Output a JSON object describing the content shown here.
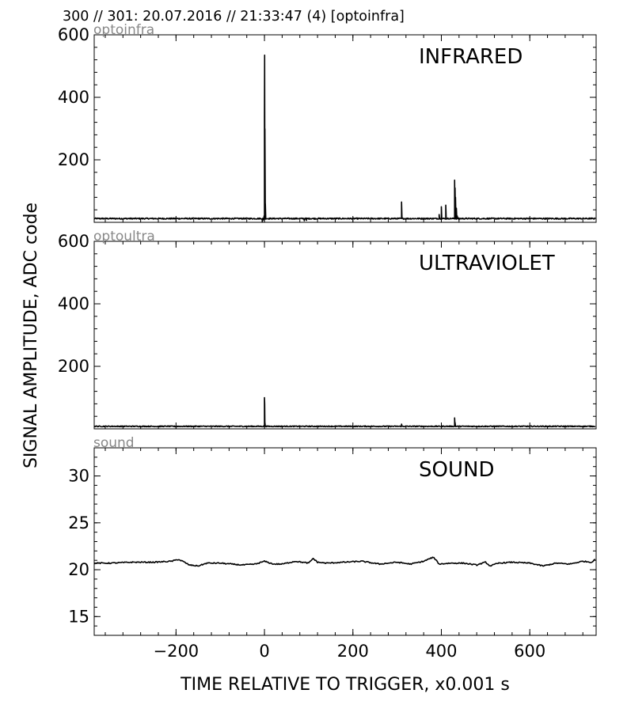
{
  "header": "300 // 301:   20.07.2016 // 21:33:47 (4)  [optoinfra]",
  "xlabel": "TIME RELATIVE TO TRIGGER,   x0.001 s",
  "ylabel": "SIGNAL AMPLITUDE,  ADC code",
  "chart_data": [
    {
      "type": "line",
      "title": "INFRARED",
      "source_label": "optoinfra",
      "xlim": [
        -385,
        750
      ],
      "ylim": [
        0,
        600
      ],
      "x_ticks": [
        -200,
        0,
        200,
        400,
        600
      ],
      "x_tick_labels": [
        "",
        "",
        "",
        "",
        ""
      ],
      "y_ticks": [
        200,
        400,
        600
      ],
      "y_tick_labels": [
        "200",
        "400",
        "600"
      ],
      "grid": false,
      "baseline": 12,
      "baseline_noise": 2,
      "peaks": [
        [
          -5,
          2
        ],
        [
          -2,
          8
        ],
        [
          -1,
          20
        ],
        [
          0,
          340
        ],
        [
          0.4,
          535
        ],
        [
          1,
          300
        ],
        [
          2,
          60
        ],
        [
          3,
          10
        ],
        [
          90,
          5
        ],
        [
          95,
          6
        ],
        [
          310,
          65
        ],
        [
          395,
          25
        ],
        [
          400,
          50
        ],
        [
          410,
          55
        ],
        [
          430,
          135
        ],
        [
          431,
          110
        ],
        [
          432,
          80
        ],
        [
          434,
          45
        ],
        [
          436,
          20
        ],
        [
          440,
          8
        ]
      ],
      "series": [
        {
          "name": "optoinfra",
          "color": "#000000"
        }
      ]
    },
    {
      "type": "line",
      "title": "ULTRAVIOLET",
      "source_label": "optoultra",
      "xlim": [
        -385,
        750
      ],
      "ylim": [
        0,
        600
      ],
      "x_ticks": [
        -200,
        0,
        200,
        400,
        600
      ],
      "x_tick_labels": [
        "",
        "",
        "",
        "",
        ""
      ],
      "y_ticks": [
        200,
        400,
        600
      ],
      "y_tick_labels": [
        "200",
        "400",
        "600"
      ],
      "grid": false,
      "baseline": 8,
      "baseline_noise": 1.5,
      "peaks": [
        [
          -1,
          10
        ],
        [
          0,
          100
        ],
        [
          0.5,
          80
        ],
        [
          1,
          20
        ],
        [
          310,
          15
        ],
        [
          400,
          6
        ],
        [
          430,
          35
        ],
        [
          431,
          20
        ],
        [
          432,
          8
        ]
      ],
      "series": [
        {
          "name": "optoultra",
          "color": "#000000"
        }
      ]
    },
    {
      "type": "line",
      "title": "SOUND",
      "source_label": "sound",
      "xlim": [
        -385,
        750
      ],
      "ylim": [
        13,
        33
      ],
      "x_ticks": [
        -200,
        0,
        200,
        400,
        600
      ],
      "x_tick_labels": [
        "−200",
        "0",
        "200",
        "400",
        "600"
      ],
      "y_ticks": [
        15,
        20,
        25,
        30
      ],
      "y_tick_labels": [
        "15",
        "20",
        "25",
        "30"
      ],
      "grid": false,
      "x": [
        -385,
        -350,
        -300,
        -250,
        -210,
        -195,
        -185,
        -170,
        -150,
        -130,
        -100,
        -50,
        -20,
        0,
        20,
        40,
        70,
        100,
        110,
        120,
        140,
        180,
        220,
        260,
        300,
        330,
        360,
        380,
        385,
        395,
        420,
        450,
        480,
        500,
        510,
        530,
        560,
        600,
        630,
        660,
        690,
        720,
        740,
        748
      ],
      "y": [
        20.7,
        20.7,
        20.8,
        20.8,
        20.9,
        21.1,
        20.9,
        20.5,
        20.4,
        20.7,
        20.7,
        20.5,
        20.6,
        20.9,
        20.6,
        20.6,
        20.9,
        20.7,
        21.2,
        20.8,
        20.7,
        20.8,
        20.9,
        20.6,
        20.8,
        20.6,
        20.9,
        21.3,
        21.2,
        20.6,
        20.7,
        20.7,
        20.5,
        20.8,
        20.4,
        20.7,
        20.8,
        20.7,
        20.4,
        20.7,
        20.6,
        20.9,
        20.8,
        21.1
      ],
      "series": [
        {
          "name": "sound",
          "color": "#000000"
        }
      ]
    }
  ]
}
